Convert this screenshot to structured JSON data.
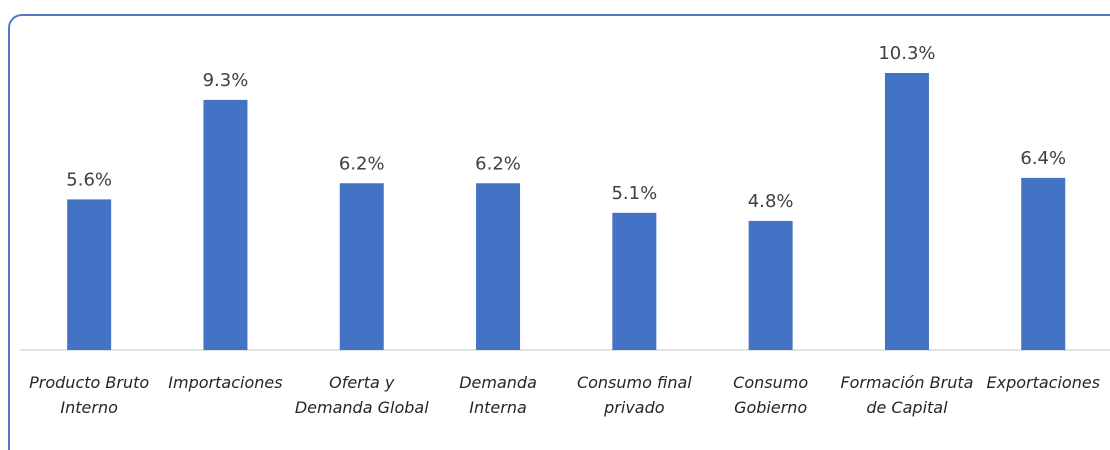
{
  "chart_data": {
    "type": "bar",
    "categories": [
      "Producto Bruto Interno",
      "Importaciones",
      "Oferta y Demanda Global",
      "Demanda Interna",
      "Consumo final privado",
      "Consumo Gobierno",
      "Formación Bruta de Capital",
      "Exportaciones"
    ],
    "values": [
      5.6,
      9.3,
      6.2,
      6.2,
      5.1,
      4.8,
      10.3,
      6.4
    ],
    "value_labels": [
      "5.6%",
      "9.3%",
      "6.2%",
      "6.2%",
      "5.1%",
      "4.8%",
      "10.3%",
      "6.4%"
    ],
    "color": "#4472c4"
  }
}
